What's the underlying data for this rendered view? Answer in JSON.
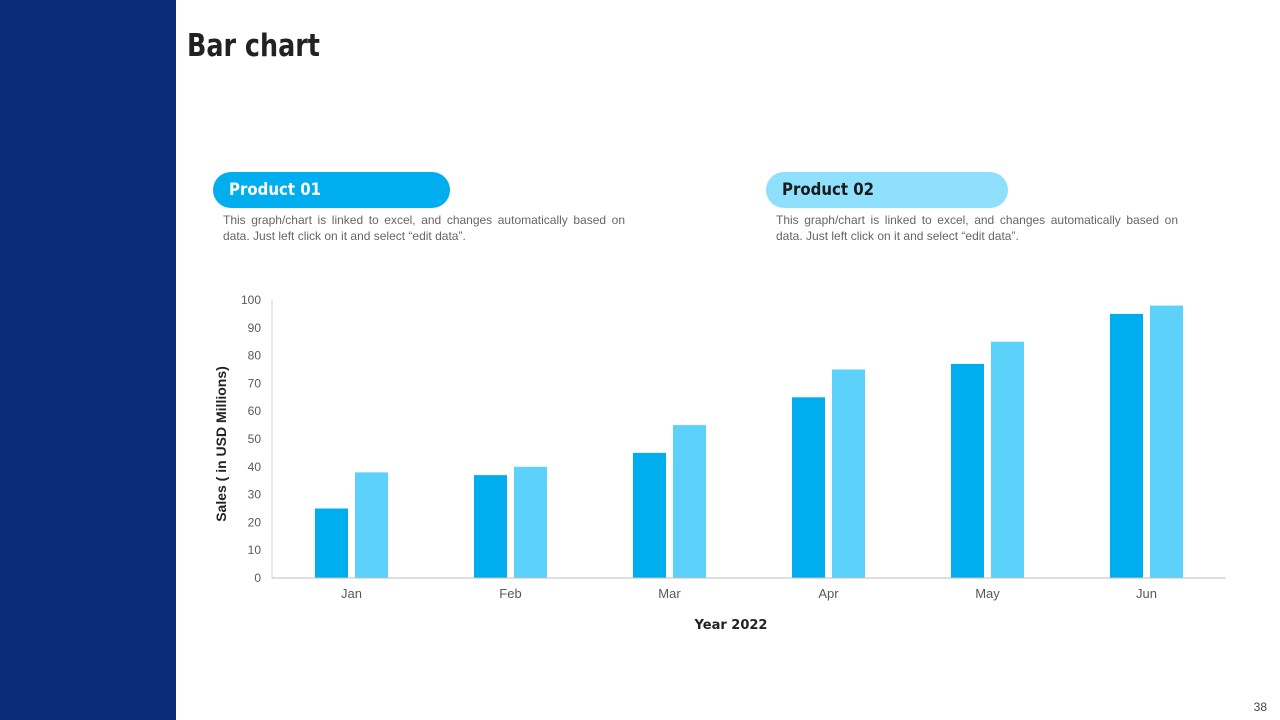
{
  "slide": {
    "title": "Bar chart",
    "page_number": "38"
  },
  "products": [
    {
      "label": "Product 01",
      "description": "This graph/chart is linked to excel, and changes automatically based on data. Just left click on it and select “edit data”."
    },
    {
      "label": "Product 02",
      "description": "This graph/chart is linked to excel, and changes automatically based on data. Just left click on it and select “edit data”."
    }
  ],
  "colors": {
    "sidebar": "#0b2a78",
    "series1": "#00adee",
    "series2": "#5cd2fb",
    "pill1": "#00adee",
    "pill2": "#8fe0fd"
  },
  "chart_data": {
    "type": "bar",
    "categories": [
      "Jan",
      "Feb",
      "Mar",
      "Apr",
      "May",
      "Jun"
    ],
    "series": [
      {
        "values": [
          25,
          37,
          45,
          65,
          77,
          95
        ]
      },
      {
        "values": [
          38,
          40,
          55,
          75,
          85,
          98
        ]
      }
    ],
    "xlabel": "Year 2022",
    "ylabel": "Sales  ( in USD Millions)",
    "ylim": [
      0,
      100
    ],
    "yticks": [
      0,
      10,
      20,
      30,
      40,
      50,
      60,
      70,
      80,
      90,
      100
    ],
    "grid": false,
    "legend": "none"
  }
}
